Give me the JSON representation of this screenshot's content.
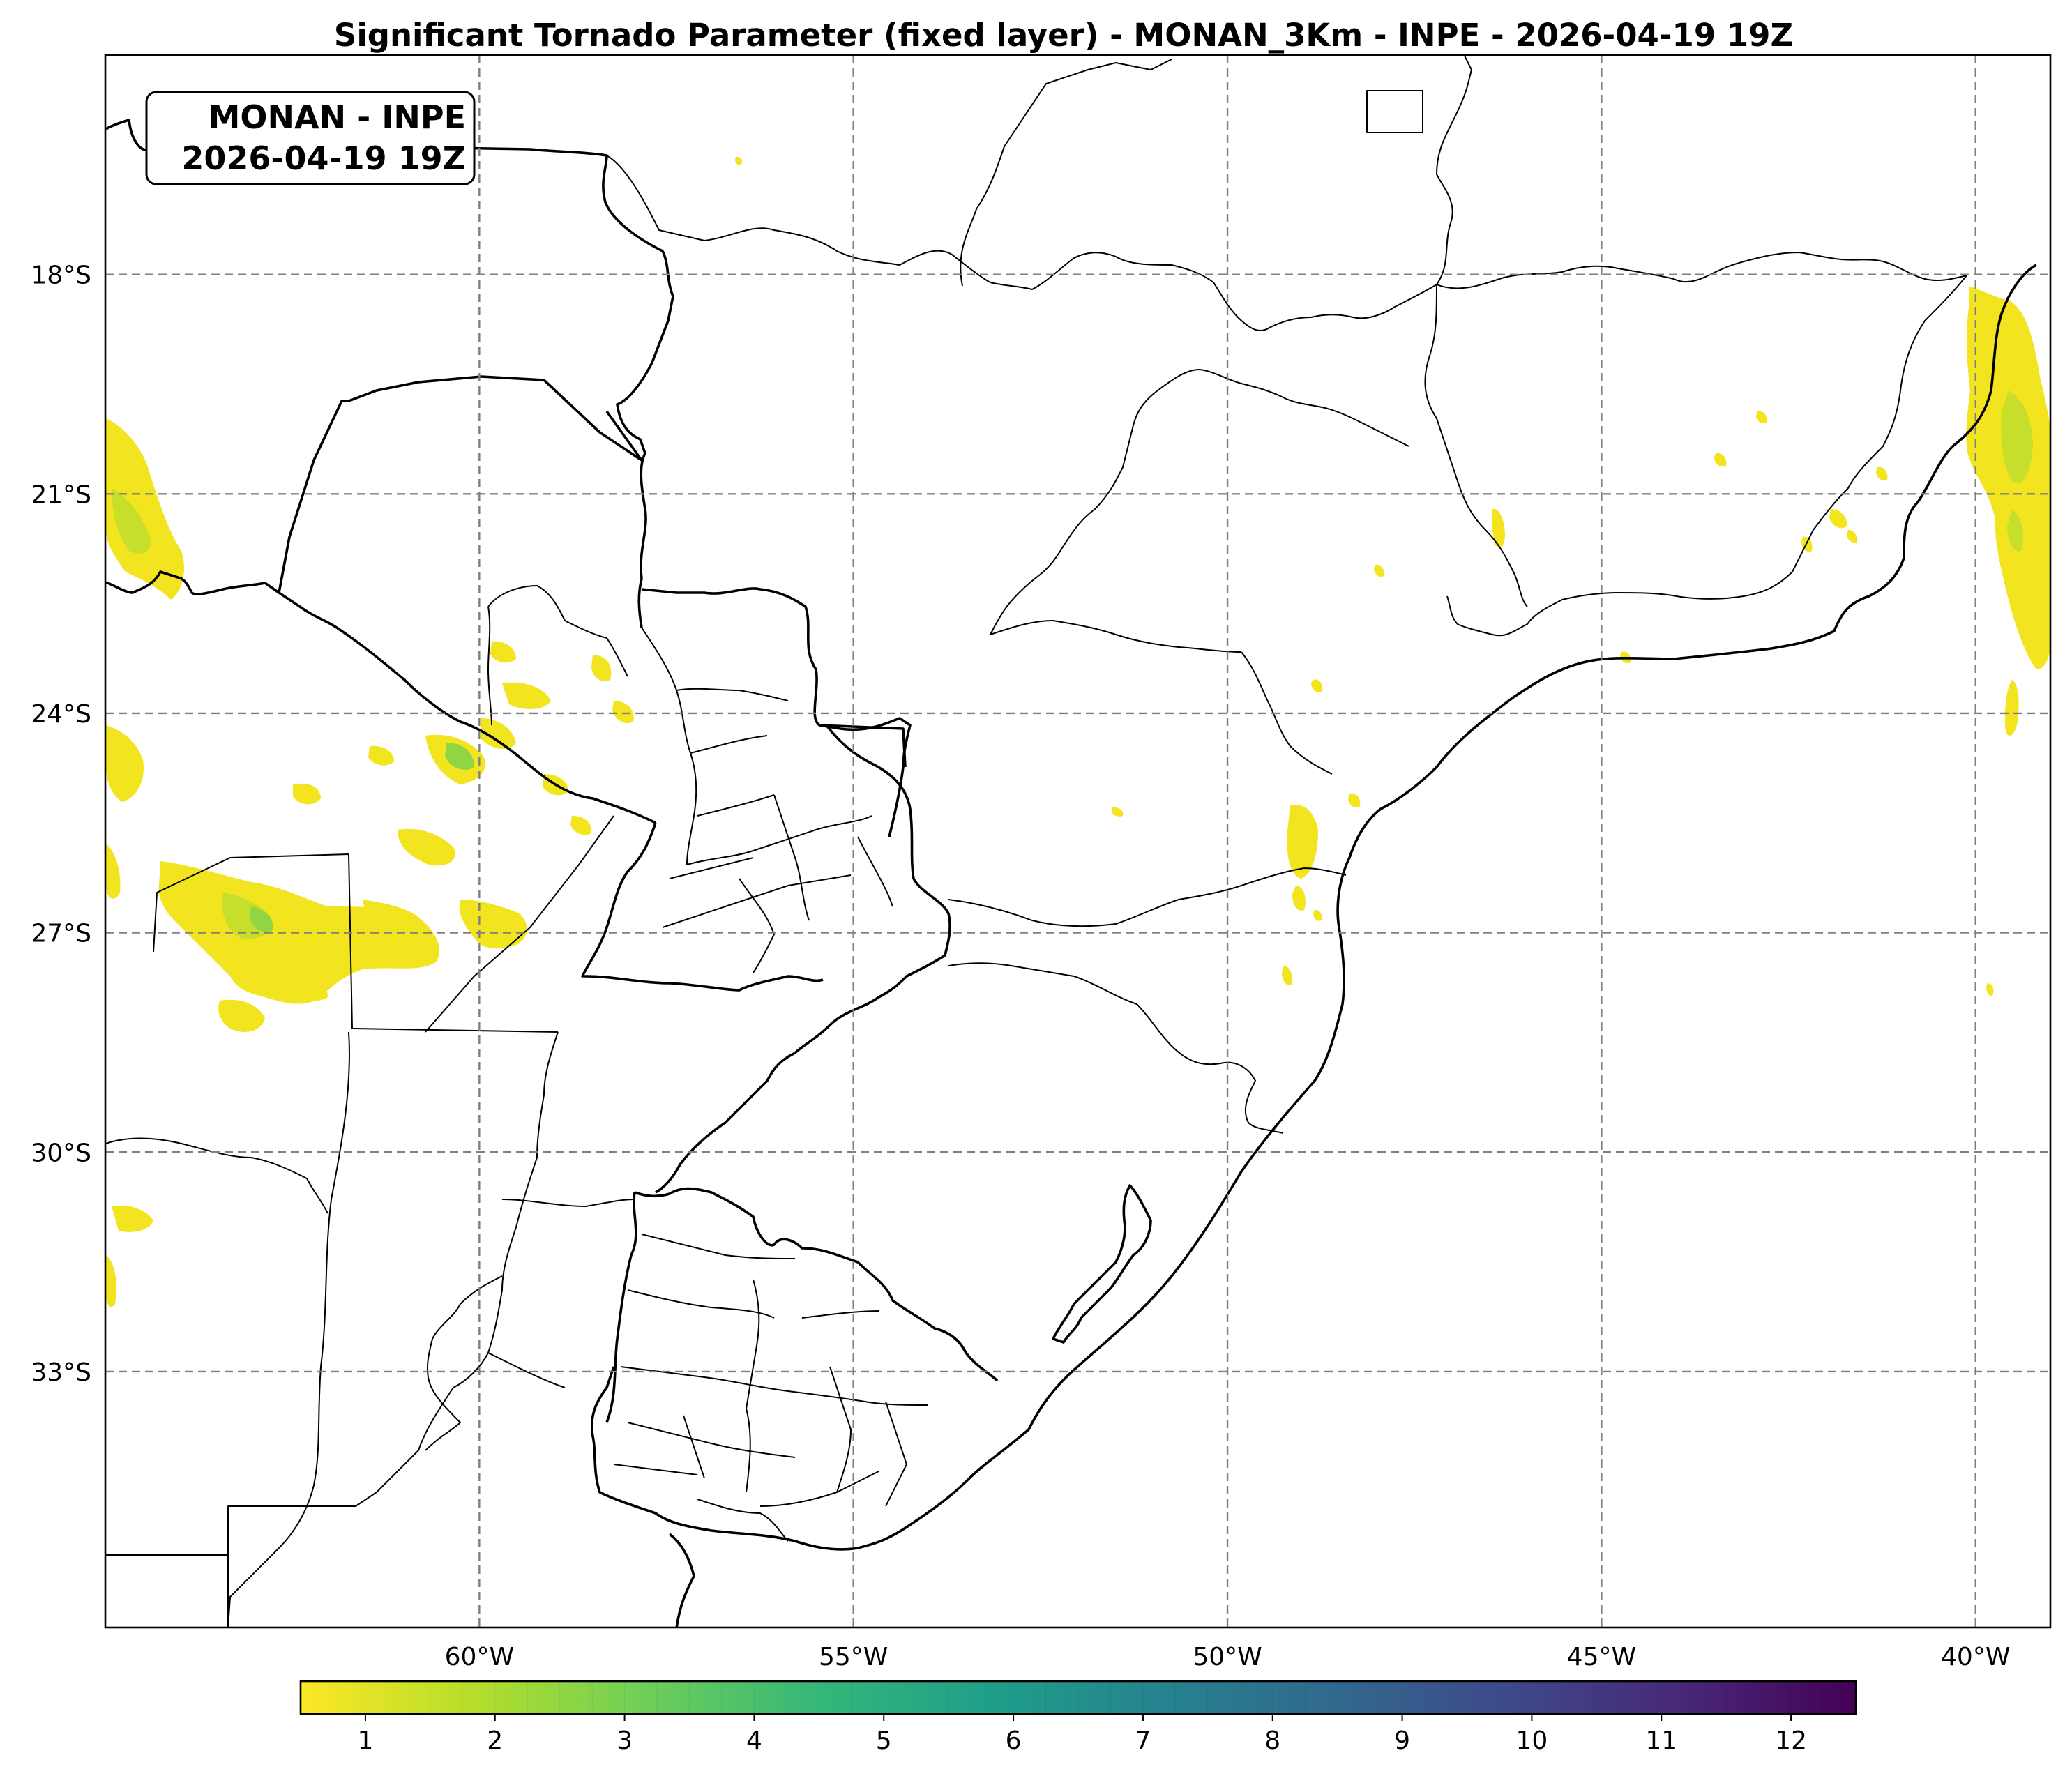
{
  "title": "Significant Tornado Parameter (fixed layer) - MONAN_3Km - INPE - 2026-04-19 19Z",
  "stamp": {
    "line1": "MONAN - INPE",
    "line2": "2026-04-19 19Z"
  },
  "map": {
    "projection": "PlateCarree",
    "lon_range": [
      -65,
      -39
    ],
    "lat_range": [
      -36.5,
      -15
    ],
    "grid_lines": "dashed gray",
    "lat_ticks": [
      {
        "value": -18,
        "label": "18°S"
      },
      {
        "value": -21,
        "label": "21°S"
      },
      {
        "value": -24,
        "label": "24°S"
      },
      {
        "value": -27,
        "label": "27°S"
      },
      {
        "value": -30,
        "label": "30°S"
      },
      {
        "value": -33,
        "label": "33°S"
      }
    ],
    "lon_ticks": [
      {
        "value": -60,
        "label": "60°W"
      },
      {
        "value": -55,
        "label": "55°W"
      },
      {
        "value": -50,
        "label": "50°W"
      },
      {
        "value": -45,
        "label": "45°W"
      },
      {
        "value": -40,
        "label": "40°W"
      }
    ]
  },
  "colorbar": {
    "cmap": "viridis_r",
    "range": [
      0.5,
      12.5
    ],
    "ticks": [
      "1",
      "2",
      "3",
      "4",
      "5",
      "6",
      "7",
      "8",
      "9",
      "10",
      "11",
      "12"
    ],
    "colors": [
      "#fde725",
      "#b5de2b",
      "#6ece58",
      "#35b779",
      "#1f9e89",
      "#26828e",
      "#31688e",
      "#3e4989",
      "#482878",
      "#440154"
    ]
  },
  "field_colors": {
    "low": "#f2e51f",
    "mid": "#c7df2a",
    "high": "#8fd544",
    "peak": "#6cc95c"
  }
}
